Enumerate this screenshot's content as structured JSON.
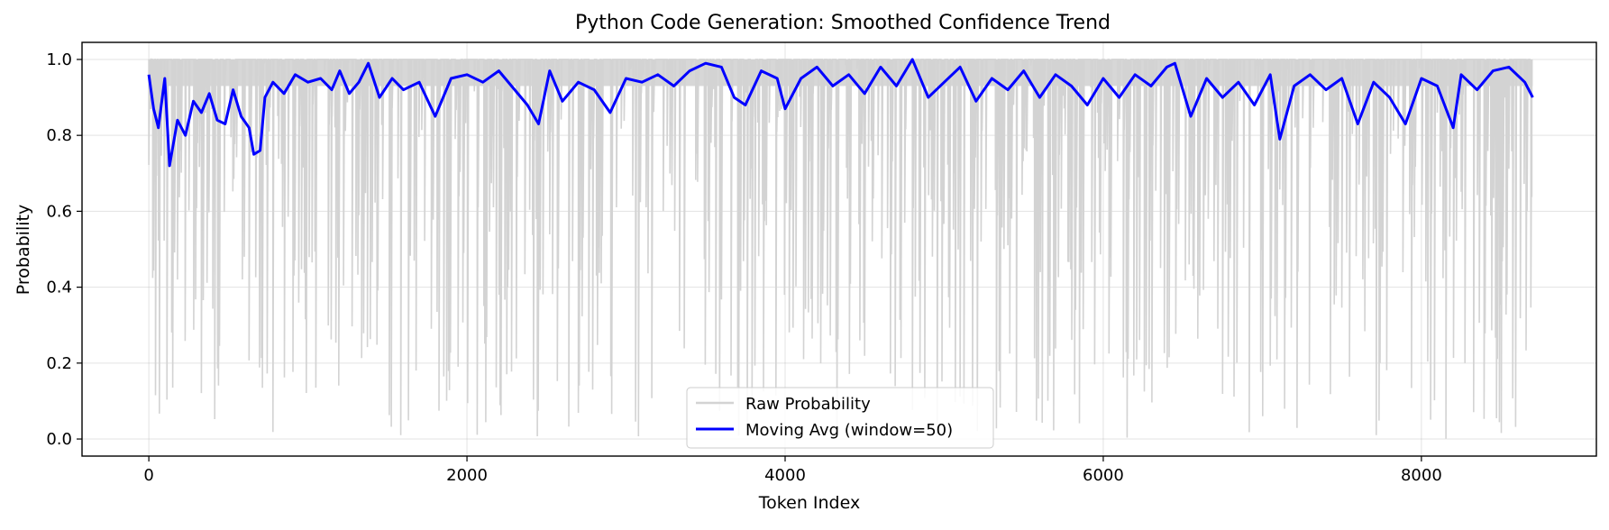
{
  "chart_data": {
    "type": "line",
    "title": "Python Code Generation: Smoothed Confidence Trend",
    "xlabel": "Token Index",
    "ylabel": "Probability",
    "xlim": [
      -420,
      9100
    ],
    "ylim": [
      -0.045,
      1.045
    ],
    "xticks": [
      0,
      2000,
      4000,
      6000,
      8000
    ],
    "xtick_labels": [
      "0",
      "2000",
      "4000",
      "6000",
      "8000"
    ],
    "yticks": [
      0.0,
      0.2,
      0.4,
      0.6,
      0.8,
      1.0
    ],
    "ytick_labels": [
      "0.0",
      "0.2",
      "0.4",
      "0.6",
      "0.8",
      "1.0"
    ],
    "grid": true,
    "legend_position": "lower center",
    "series": [
      {
        "name": "Raw Probability",
        "color": "#d3d3d3",
        "style": "dense-noisy",
        "n_points": 8700,
        "range": [
          0.0,
          1.0
        ],
        "typical_value": 1.0
      },
      {
        "name": "Moving Avg (window=50)",
        "color": "#0000ff",
        "x": [
          0,
          30,
          60,
          100,
          130,
          180,
          230,
          280,
          330,
          380,
          430,
          480,
          530,
          580,
          630,
          660,
          700,
          730,
          780,
          850,
          920,
          1000,
          1080,
          1150,
          1200,
          1260,
          1320,
          1380,
          1450,
          1530,
          1600,
          1700,
          1800,
          1900,
          2000,
          2100,
          2200,
          2300,
          2380,
          2450,
          2520,
          2600,
          2700,
          2800,
          2900,
          3000,
          3100,
          3200,
          3300,
          3400,
          3500,
          3600,
          3680,
          3750,
          3850,
          3950,
          4000,
          4100,
          4200,
          4300,
          4400,
          4500,
          4600,
          4700,
          4800,
          4900,
          5000,
          5100,
          5200,
          5300,
          5400,
          5500,
          5600,
          5700,
          5800,
          5900,
          6000,
          6100,
          6200,
          6300,
          6400,
          6450,
          6550,
          6650,
          6750,
          6850,
          6950,
          7050,
          7110,
          7200,
          7300,
          7400,
          7500,
          7600,
          7700,
          7800,
          7900,
          8000,
          8100,
          8200,
          8250,
          8350,
          8450,
          8550,
          8650,
          8700
        ],
        "values": [
          0.96,
          0.87,
          0.82,
          0.95,
          0.72,
          0.84,
          0.8,
          0.89,
          0.86,
          0.91,
          0.84,
          0.83,
          0.92,
          0.85,
          0.82,
          0.75,
          0.76,
          0.9,
          0.94,
          0.91,
          0.96,
          0.94,
          0.95,
          0.92,
          0.97,
          0.91,
          0.94,
          0.99,
          0.9,
          0.95,
          0.92,
          0.94,
          0.85,
          0.95,
          0.96,
          0.94,
          0.97,
          0.92,
          0.88,
          0.83,
          0.97,
          0.89,
          0.94,
          0.92,
          0.86,
          0.95,
          0.94,
          0.96,
          0.93,
          0.97,
          0.99,
          0.98,
          0.9,
          0.88,
          0.97,
          0.95,
          0.87,
          0.95,
          0.98,
          0.93,
          0.96,
          0.91,
          0.98,
          0.93,
          1.0,
          0.9,
          0.94,
          0.98,
          0.89,
          0.95,
          0.92,
          0.97,
          0.9,
          0.96,
          0.93,
          0.88,
          0.95,
          0.9,
          0.96,
          0.93,
          0.98,
          0.99,
          0.85,
          0.95,
          0.9,
          0.94,
          0.88,
          0.96,
          0.79,
          0.93,
          0.96,
          0.92,
          0.95,
          0.83,
          0.94,
          0.9,
          0.83,
          0.95,
          0.93,
          0.82,
          0.96,
          0.92,
          0.97,
          0.98,
          0.94,
          0.9
        ]
      }
    ]
  }
}
